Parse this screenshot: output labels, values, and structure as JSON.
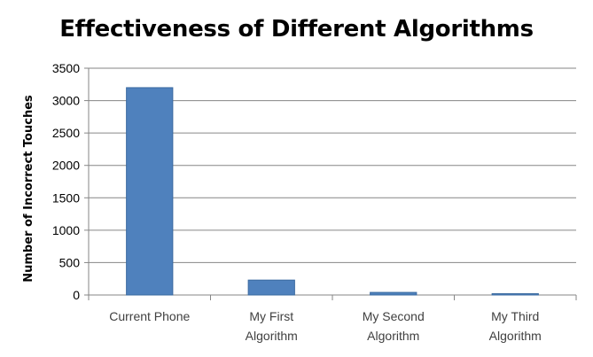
{
  "chart_data": {
    "type": "bar",
    "title": "Effectiveness of Different Algorithms",
    "xlabel": "",
    "ylabel": "Number of Incorrect Touches",
    "categories": [
      [
        "Current Phone"
      ],
      [
        "My First",
        "Algorithm"
      ],
      [
        "My Second",
        "Algorithm"
      ],
      [
        "My Third",
        "Algorithm"
      ]
    ],
    "values": [
      3200,
      230,
      40,
      20
    ],
    "ylim": [
      0,
      3500
    ],
    "yticks": [
      0,
      500,
      1000,
      1500,
      2000,
      2500,
      3000,
      3500
    ],
    "grid": true,
    "legend": "none",
    "bar_color": "#4f81bd",
    "bar_border_color": "#3a6aa0",
    "grid_color": "#868686"
  }
}
